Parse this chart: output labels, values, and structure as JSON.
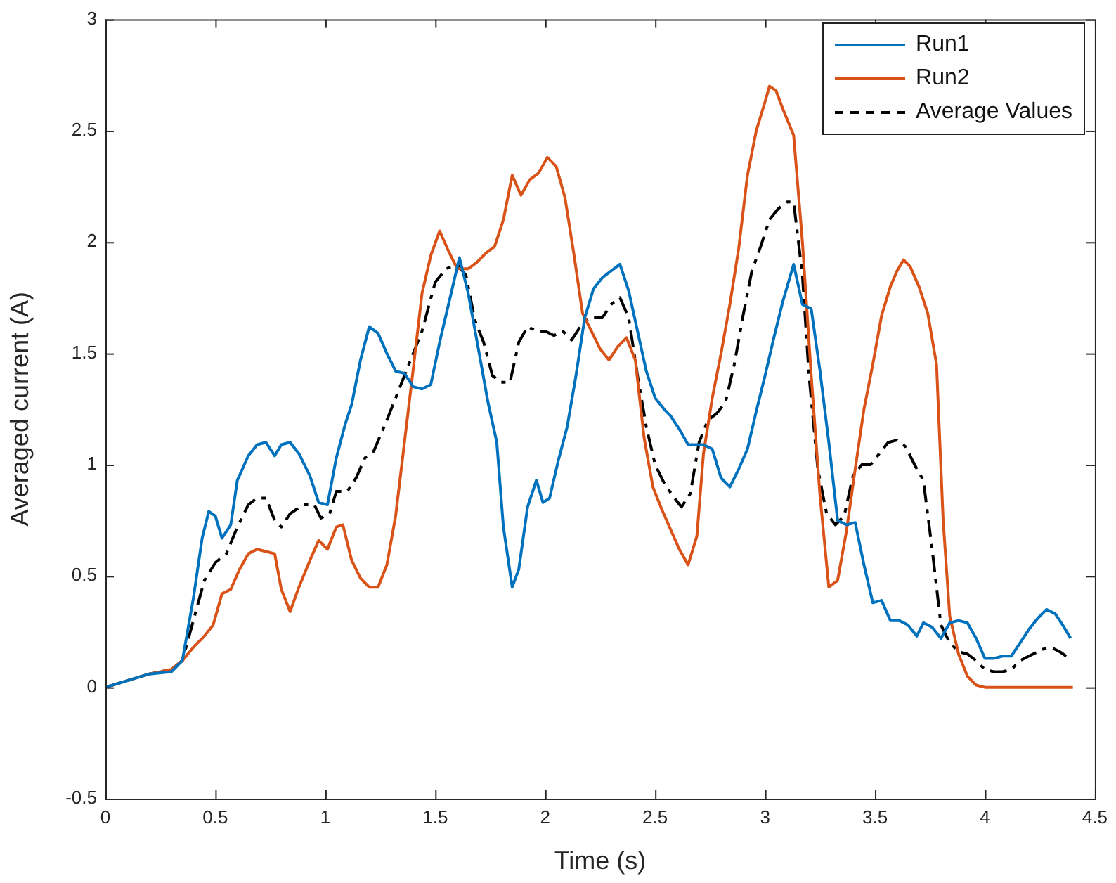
{
  "chart_data": {
    "type": "line",
    "xlabel": "Time (s)",
    "ylabel": "Averaged current (A)",
    "xlim": [
      0,
      4.5
    ],
    "xticks": [
      0,
      0.5,
      1,
      1.5,
      2,
      2.5,
      3,
      3.5,
      4,
      4.5
    ],
    "ylim": [
      -0.5,
      3
    ],
    "yticks": [
      -0.5,
      0,
      0.5,
      1,
      1.5,
      2,
      2.5,
      3
    ],
    "grid": false,
    "legend": "top right",
    "marker": "none",
    "series": [
      {
        "name": "Run1",
        "color": "#0072bd",
        "line_style": "solid",
        "x": [
          0,
          0.1,
          0.2,
          0.3,
          0.35,
          0.4,
          0.44,
          0.47,
          0.5,
          0.53,
          0.57,
          0.6,
          0.65,
          0.69,
          0.73,
          0.77,
          0.8,
          0.84,
          0.88,
          0.93,
          0.97,
          1.01,
          1.05,
          1.09,
          1.12,
          1.16,
          1.2,
          1.24,
          1.28,
          1.32,
          1.36,
          1.4,
          1.44,
          1.48,
          1.52,
          1.57,
          1.61,
          1.65,
          1.7,
          1.74,
          1.78,
          1.81,
          1.85,
          1.88,
          1.92,
          1.96,
          1.99,
          2.02,
          2.06,
          2.1,
          2.14,
          2.18,
          2.22,
          2.26,
          2.3,
          2.34,
          2.38,
          2.42,
          2.46,
          2.5,
          2.54,
          2.57,
          2.61,
          2.65,
          2.69,
          2.72,
          2.76,
          2.8,
          2.84,
          2.88,
          2.92,
          2.96,
          3,
          3.04,
          3.08,
          3.13,
          3.17,
          3.21,
          3.25,
          3.29,
          3.33,
          3.37,
          3.41,
          3.45,
          3.49,
          3.53,
          3.57,
          3.61,
          3.65,
          3.69,
          3.72,
          3.76,
          3.8,
          3.84,
          3.88,
          3.92,
          3.96,
          4,
          4.04,
          4.08,
          4.12,
          4.16,
          4.2,
          4.24,
          4.28,
          4.32,
          4.36,
          4.39
        ],
        "values": [
          0,
          0.03,
          0.06,
          0.07,
          0.12,
          0.4,
          0.67,
          0.79,
          0.77,
          0.67,
          0.73,
          0.93,
          1.04,
          1.09,
          1.1,
          1.04,
          1.09,
          1.1,
          1.05,
          0.95,
          0.83,
          0.82,
          1.03,
          1.18,
          1.27,
          1.47,
          1.62,
          1.59,
          1.5,
          1.42,
          1.41,
          1.35,
          1.34,
          1.36,
          1.55,
          1.76,
          1.93,
          1.77,
          1.5,
          1.28,
          1.1,
          0.72,
          0.45,
          0.53,
          0.81,
          0.93,
          0.83,
          0.85,
          1.02,
          1.17,
          1.4,
          1.66,
          1.79,
          1.84,
          1.87,
          1.9,
          1.78,
          1.6,
          1.42,
          1.3,
          1.25,
          1.22,
          1.16,
          1.09,
          1.09,
          1.09,
          1.07,
          0.94,
          0.9,
          0.98,
          1.07,
          1.24,
          1.4,
          1.57,
          1.73,
          1.9,
          1.72,
          1.7,
          1.42,
          1.1,
          0.75,
          0.73,
          0.74,
          0.55,
          0.38,
          0.39,
          0.3,
          0.3,
          0.28,
          0.23,
          0.29,
          0.27,
          0.22,
          0.29,
          0.3,
          0.29,
          0.22,
          0.13,
          0.13,
          0.14,
          0.14,
          0.2,
          0.26,
          0.31,
          0.35,
          0.33,
          0.27,
          0.22
        ]
      },
      {
        "name": "Run2",
        "color": "#d95319",
        "line_style": "solid",
        "x": [
          0,
          0.1,
          0.2,
          0.3,
          0.35,
          0.4,
          0.45,
          0.49,
          0.53,
          0.57,
          0.61,
          0.65,
          0.69,
          0.73,
          0.77,
          0.8,
          0.84,
          0.88,
          0.93,
          0.97,
          1.01,
          1.05,
          1.08,
          1.12,
          1.16,
          1.2,
          1.24,
          1.28,
          1.32,
          1.36,
          1.4,
          1.44,
          1.48,
          1.52,
          1.56,
          1.6,
          1.65,
          1.69,
          1.73,
          1.77,
          1.81,
          1.85,
          1.89,
          1.93,
          1.97,
          2.01,
          2.05,
          2.09,
          2.13,
          2.17,
          2.21,
          2.25,
          2.29,
          2.33,
          2.37,
          2.41,
          2.45,
          2.49,
          2.53,
          2.57,
          2.61,
          2.65,
          2.69,
          2.72,
          2.76,
          2.8,
          2.84,
          2.88,
          2.92,
          2.96,
          3,
          3.02,
          3.05,
          3.08,
          3.13,
          3.17,
          3.21,
          3.25,
          3.29,
          3.33,
          3.37,
          3.41,
          3.45,
          3.49,
          3.53,
          3.57,
          3.6,
          3.63,
          3.66,
          3.7,
          3.74,
          3.78,
          3.81,
          3.84,
          3.88,
          3.92,
          3.96,
          4,
          4.4
        ],
        "values": [
          0,
          0.03,
          0.06,
          0.08,
          0.12,
          0.18,
          0.23,
          0.28,
          0.42,
          0.44,
          0.53,
          0.6,
          0.62,
          0.61,
          0.6,
          0.44,
          0.34,
          0.45,
          0.57,
          0.66,
          0.62,
          0.72,
          0.73,
          0.57,
          0.49,
          0.45,
          0.45,
          0.55,
          0.77,
          1.1,
          1.43,
          1.77,
          1.94,
          2.05,
          1.96,
          1.88,
          1.88,
          1.91,
          1.95,
          1.98,
          2.1,
          2.3,
          2.21,
          2.28,
          2.31,
          2.38,
          2.34,
          2.2,
          1.95,
          1.68,
          1.6,
          1.52,
          1.47,
          1.53,
          1.57,
          1.47,
          1.12,
          0.9,
          0.8,
          0.71,
          0.62,
          0.55,
          0.68,
          1.05,
          1.3,
          1.5,
          1.72,
          1.97,
          2.3,
          2.5,
          2.63,
          2.7,
          2.68,
          2.6,
          2.48,
          2,
          1.4,
          0.86,
          0.45,
          0.48,
          0.7,
          0.98,
          1.25,
          1.45,
          1.67,
          1.8,
          1.87,
          1.92,
          1.89,
          1.8,
          1.68,
          1.45,
          0.75,
          0.32,
          0.15,
          0.05,
          0.01,
          0,
          0
        ]
      },
      {
        "name": "Average Values",
        "color": "#000000",
        "line_style": "dashdot",
        "x": [
          0,
          0.1,
          0.2,
          0.3,
          0.35,
          0.4,
          0.45,
          0.5,
          0.55,
          0.6,
          0.65,
          0.69,
          0.73,
          0.77,
          0.8,
          0.84,
          0.9,
          0.95,
          0.98,
          1.02,
          1.05,
          1.1,
          1.14,
          1.18,
          1.22,
          1.28,
          1.32,
          1.38,
          1.44,
          1.5,
          1.55,
          1.6,
          1.64,
          1.68,
          1.72,
          1.76,
          1.8,
          1.84,
          1.88,
          1.92,
          1.96,
          2,
          2.04,
          2.08,
          2.12,
          2.16,
          2.2,
          2.26,
          2.3,
          2.34,
          2.38,
          2.42,
          2.46,
          2.5,
          2.54,
          2.58,
          2.62,
          2.66,
          2.7,
          2.74,
          2.78,
          2.82,
          2.86,
          2.9,
          2.94,
          2.98,
          3.02,
          3.06,
          3.1,
          3.13,
          3.17,
          3.2,
          3.24,
          3.28,
          3.32,
          3.36,
          3.4,
          3.44,
          3.48,
          3.52,
          3.56,
          3.6,
          3.64,
          3.68,
          3.72,
          3.76,
          3.8,
          3.84,
          3.88,
          3.92,
          3.96,
          4,
          4.04,
          4.08,
          4.12,
          4.16,
          4.2,
          4.26,
          4.3,
          4.34,
          4.37
        ],
        "values": [
          0,
          0.03,
          0.06,
          0.08,
          0.12,
          0.3,
          0.48,
          0.56,
          0.6,
          0.72,
          0.82,
          0.85,
          0.85,
          0.75,
          0.72,
          0.78,
          0.82,
          0.82,
          0.76,
          0.78,
          0.88,
          0.88,
          0.94,
          1.03,
          1.06,
          1.2,
          1.3,
          1.45,
          1.6,
          1.82,
          1.88,
          1.9,
          1.85,
          1.65,
          1.55,
          1.4,
          1.37,
          1.37,
          1.55,
          1.62,
          1.6,
          1.6,
          1.58,
          1.6,
          1.56,
          1.62,
          1.66,
          1.66,
          1.72,
          1.75,
          1.66,
          1.4,
          1.17,
          1,
          0.92,
          0.86,
          0.81,
          0.87,
          1.1,
          1.2,
          1.23,
          1.28,
          1.45,
          1.67,
          1.87,
          1.98,
          2.1,
          2.15,
          2.18,
          2.18,
          1.85,
          1.4,
          0.98,
          0.78,
          0.73,
          0.77,
          0.95,
          1,
          1,
          1.05,
          1.1,
          1.11,
          1.08,
          1,
          0.93,
          0.62,
          0.28,
          0.2,
          0.16,
          0.15,
          0.12,
          0.08,
          0.07,
          0.07,
          0.08,
          0.12,
          0.14,
          0.17,
          0.18,
          0.16,
          0.14
        ]
      }
    ]
  }
}
